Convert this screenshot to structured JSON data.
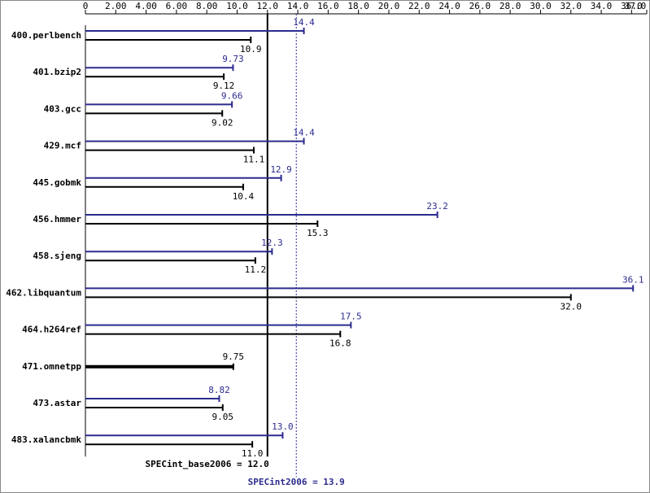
{
  "chart_data": {
    "type": "hbar-pair",
    "categories": [
      "400.perlbench",
      "401.bzip2",
      "403.gcc",
      "429.mcf",
      "445.gobmk",
      "456.hmmer",
      "458.sjeng",
      "462.libquantum",
      "464.h264ref",
      "471.omnetpp",
      "473.astar",
      "483.xalancbmk"
    ],
    "series": [
      {
        "name": "SPECint2006",
        "color": "#2b2b8f",
        "values": [
          14.4,
          9.73,
          9.66,
          14.4,
          12.9,
          23.2,
          12.3,
          36.1,
          17.5,
          null,
          8.82,
          13.0
        ],
        "value_labels": [
          "14.4",
          "9.73",
          "9.66",
          "14.4",
          "12.9",
          "23.2",
          "12.3",
          "36.1",
          "17.5",
          null,
          "8.82",
          "13.0"
        ]
      },
      {
        "name": "SPECint_base2006",
        "color": "#000000",
        "values": [
          10.9,
          9.12,
          9.02,
          11.1,
          10.4,
          15.3,
          11.2,
          32.0,
          16.8,
          9.75,
          9.05,
          11.0
        ],
        "value_labels": [
          "10.9",
          "9.12",
          "9.02",
          "11.1",
          "10.4",
          "15.3",
          "11.2",
          "32.0",
          "16.8",
          "9.75",
          "9.05",
          "11.0"
        ]
      }
    ],
    "xlim": [
      0,
      37
    ],
    "xticks": [
      0,
      {
        "value": 2,
        "label": "2.00"
      },
      {
        "value": 4,
        "label": "4.00"
      },
      {
        "value": 6,
        "label": "6.00"
      },
      {
        "value": 8,
        "label": "8.00"
      },
      {
        "value": 10,
        "label": "10.0"
      },
      {
        "value": 12,
        "label": "12.0"
      },
      {
        "value": 14,
        "label": "14.0"
      },
      {
        "value": 16,
        "label": "16.0"
      },
      {
        "value": 18,
        "label": "18.0"
      },
      {
        "value": 20,
        "label": "20.0"
      },
      {
        "value": 22,
        "label": "22.0"
      },
      {
        "value": 24,
        "label": "24.0"
      },
      {
        "value": 26,
        "label": "26.0"
      },
      {
        "value": 28,
        "label": "28.0"
      },
      {
        "value": 30,
        "label": "30.0"
      },
      {
        "value": 32,
        "label": "32.0"
      },
      {
        "value": 34,
        "label": "34.0"
      },
      {
        "value": 36,
        "label": "36.0"
      },
      {
        "value": 37,
        "label": "37.0"
      }
    ],
    "reference_lines": [
      {
        "value": 12.0,
        "label": "SPECint_base2006 = 12.0",
        "color": "#000000",
        "dashed": false
      },
      {
        "value": 13.9,
        "label": "SPECint2006 = 13.9",
        "color": "#2b2b8f",
        "dashed": true
      }
    ]
  }
}
